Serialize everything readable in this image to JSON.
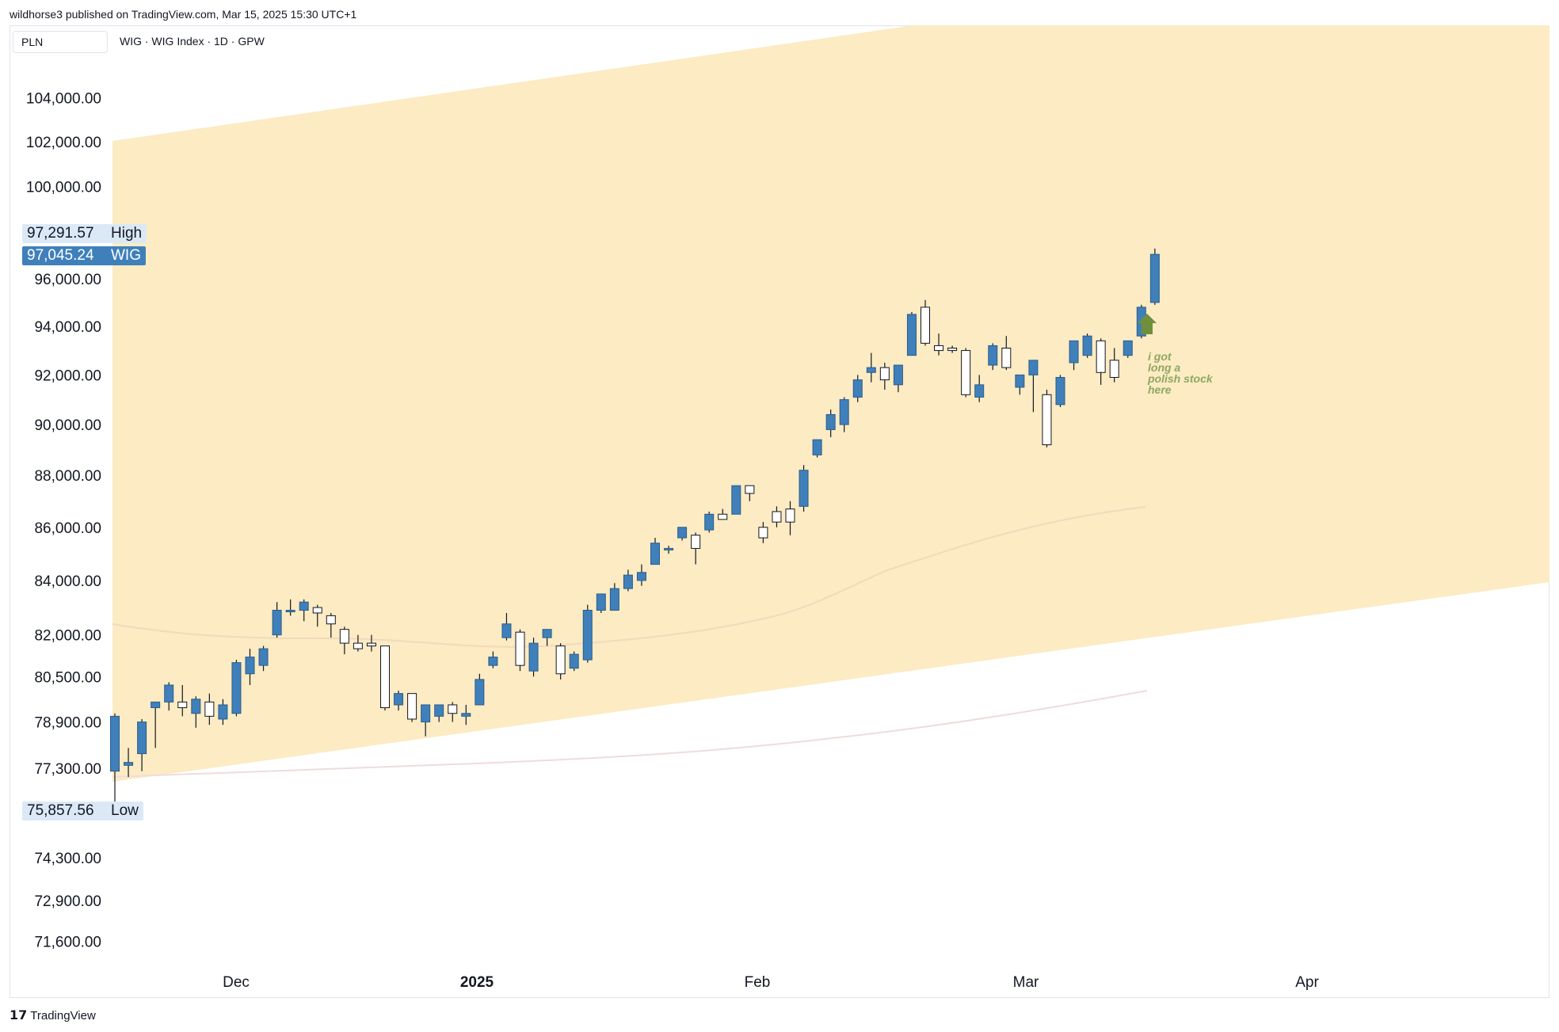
{
  "header": {
    "published_by": "wildhorse3 published on TradingView.com, Mar 15, 2025 15:30 UTC+1"
  },
  "toolbar": {
    "currency": "PLN",
    "symbol_line": "WIG · WIG Index · 1D · GPW"
  },
  "footer": {
    "logo_text": "TradingView",
    "logo_mark_icon": "tradingview-logo-icon"
  },
  "price_tags": {
    "high": {
      "value": "97,291.57",
      "label": "High"
    },
    "last": {
      "value": "97,045.24",
      "label": "WIG"
    },
    "low": {
      "value": "75,857.56",
      "label": "Low"
    }
  },
  "annotation": {
    "lines": [
      "i got",
      "long a",
      "polish stock",
      "here"
    ],
    "arrow_icon": "up-arrow-icon"
  },
  "colors": {
    "up_candle": "#3f80bb",
    "down_candle_fill": "#ffffff",
    "candle_border": "#2c5d8a",
    "channel_fill": "#fcebc3",
    "ma_short": "#f2d9bd",
    "ma_long": "#efdcdc",
    "arrow": "#6f8f3d",
    "annotation_text": "#8fa861"
  },
  "chart_data": {
    "type": "candlestick",
    "scale": "log",
    "interval": "1D",
    "y_tick_labels": [
      "104,000.00",
      "102,000.00",
      "100,000.00",
      "96,000.00",
      "94,000.00",
      "92,000.00",
      "90,000.00",
      "88,000.00",
      "86,000.00",
      "84,000.00",
      "82,000.00",
      "80,500.00",
      "78,900.00",
      "77,300.00",
      "74,300.00",
      "72,900.00",
      "71,600.00"
    ],
    "x_tick_labels": [
      "Dec",
      "2025",
      "Feb",
      "Mar",
      "Apr"
    ],
    "ylim": [
      70600,
      107000
    ],
    "grid": false,
    "candles": [
      {
        "o": 77200,
        "h": 79200,
        "l": 75858,
        "c": 79100
      },
      {
        "o": 77400,
        "h": 78000,
        "l": 77000,
        "c": 77500
      },
      {
        "o": 77800,
        "h": 79000,
        "l": 77200,
        "c": 78900
      },
      {
        "o": 79400,
        "h": 79600,
        "l": 78000,
        "c": 79600
      },
      {
        "o": 79600,
        "h": 80300,
        "l": 79300,
        "c": 80200
      },
      {
        "o": 79600,
        "h": 80200,
        "l": 79100,
        "c": 79400
      },
      {
        "o": 79200,
        "h": 79800,
        "l": 78700,
        "c": 79700
      },
      {
        "o": 79600,
        "h": 79900,
        "l": 78800,
        "c": 79100
      },
      {
        "o": 79000,
        "h": 79700,
        "l": 78800,
        "c": 79500
      },
      {
        "o": 79200,
        "h": 81100,
        "l": 79100,
        "c": 81000
      },
      {
        "o": 80600,
        "h": 81500,
        "l": 80200,
        "c": 81200
      },
      {
        "o": 80900,
        "h": 81600,
        "l": 80700,
        "c": 81500
      },
      {
        "o": 82000,
        "h": 83200,
        "l": 81900,
        "c": 82900
      },
      {
        "o": 82900,
        "h": 83300,
        "l": 82700,
        "c": 82900
      },
      {
        "o": 82900,
        "h": 83300,
        "l": 82500,
        "c": 83200
      },
      {
        "o": 83000,
        "h": 83100,
        "l": 82300,
        "c": 82800
      },
      {
        "o": 82700,
        "h": 82800,
        "l": 81900,
        "c": 82400
      },
      {
        "o": 82200,
        "h": 82300,
        "l": 81300,
        "c": 81700
      },
      {
        "o": 81700,
        "h": 82000,
        "l": 81400,
        "c": 81500
      },
      {
        "o": 81700,
        "h": 82000,
        "l": 81400,
        "c": 81600
      },
      {
        "o": 81600,
        "h": 81600,
        "l": 79300,
        "c": 79400
      },
      {
        "o": 79500,
        "h": 80000,
        "l": 79300,
        "c": 79900
      },
      {
        "o": 79900,
        "h": 79900,
        "l": 78900,
        "c": 79000
      },
      {
        "o": 78900,
        "h": 79500,
        "l": 78400,
        "c": 79500
      },
      {
        "o": 79100,
        "h": 79500,
        "l": 78900,
        "c": 79500
      },
      {
        "o": 79500,
        "h": 79600,
        "l": 78900,
        "c": 79200
      },
      {
        "o": 79100,
        "h": 79500,
        "l": 78800,
        "c": 79200
      },
      {
        "o": 79500,
        "h": 80600,
        "l": 79500,
        "c": 80400
      },
      {
        "o": 80900,
        "h": 81400,
        "l": 80800,
        "c": 81200
      },
      {
        "o": 81900,
        "h": 82800,
        "l": 81800,
        "c": 82400
      },
      {
        "o": 82100,
        "h": 82200,
        "l": 80700,
        "c": 80900
      },
      {
        "o": 80700,
        "h": 81900,
        "l": 80500,
        "c": 81700
      },
      {
        "o": 81900,
        "h": 82200,
        "l": 81600,
        "c": 82200
      },
      {
        "o": 81600,
        "h": 81700,
        "l": 80400,
        "c": 80600
      },
      {
        "o": 80800,
        "h": 81400,
        "l": 80700,
        "c": 81300
      },
      {
        "o": 81100,
        "h": 83100,
        "l": 81000,
        "c": 82900
      },
      {
        "o": 82900,
        "h": 83400,
        "l": 82800,
        "c": 83500
      },
      {
        "o": 82900,
        "h": 83900,
        "l": 82900,
        "c": 83700
      },
      {
        "o": 83700,
        "h": 84400,
        "l": 83600,
        "c": 84200
      },
      {
        "o": 84000,
        "h": 84600,
        "l": 83800,
        "c": 84300
      },
      {
        "o": 84600,
        "h": 85600,
        "l": 84600,
        "c": 85400
      },
      {
        "o": 85200,
        "h": 85300,
        "l": 85000,
        "c": 85200
      },
      {
        "o": 85600,
        "h": 86000,
        "l": 85500,
        "c": 86000
      },
      {
        "o": 85700,
        "h": 85800,
        "l": 84600,
        "c": 85200
      },
      {
        "o": 85900,
        "h": 86600,
        "l": 85800,
        "c": 86500
      },
      {
        "o": 86500,
        "h": 86700,
        "l": 86300,
        "c": 86300
      },
      {
        "o": 86500,
        "h": 87600,
        "l": 86500,
        "c": 87600
      },
      {
        "o": 87600,
        "h": 87600,
        "l": 87000,
        "c": 87300
      },
      {
        "o": 86000,
        "h": 86200,
        "l": 85400,
        "c": 85600
      },
      {
        "o": 86600,
        "h": 86800,
        "l": 86000,
        "c": 86200
      },
      {
        "o": 86700,
        "h": 87000,
        "l": 85700,
        "c": 86200
      },
      {
        "o": 86800,
        "h": 88400,
        "l": 86600,
        "c": 88200
      },
      {
        "o": 88800,
        "h": 89400,
        "l": 88700,
        "c": 89400
      },
      {
        "o": 89800,
        "h": 90600,
        "l": 89500,
        "c": 90400
      },
      {
        "o": 90000,
        "h": 91100,
        "l": 89700,
        "c": 91000
      },
      {
        "o": 91100,
        "h": 92000,
        "l": 90900,
        "c": 91800
      },
      {
        "o": 92100,
        "h": 92900,
        "l": 91700,
        "c": 92300
      },
      {
        "o": 92300,
        "h": 92500,
        "l": 91400,
        "c": 91800
      },
      {
        "o": 91600,
        "h": 92400,
        "l": 91300,
        "c": 92400
      },
      {
        "o": 92800,
        "h": 94600,
        "l": 92800,
        "c": 94500
      },
      {
        "o": 94800,
        "h": 95100,
        "l": 93200,
        "c": 93300
      },
      {
        "o": 93200,
        "h": 93700,
        "l": 92800,
        "c": 93000
      },
      {
        "o": 93100,
        "h": 93200,
        "l": 92900,
        "c": 93000
      },
      {
        "o": 93000,
        "h": 93100,
        "l": 91100,
        "c": 91200
      },
      {
        "o": 91100,
        "h": 92000,
        "l": 90900,
        "c": 91600
      },
      {
        "o": 92400,
        "h": 93300,
        "l": 92200,
        "c": 93200
      },
      {
        "o": 93100,
        "h": 93600,
        "l": 92200,
        "c": 92300
      },
      {
        "o": 91500,
        "h": 92000,
        "l": 91200,
        "c": 92000
      },
      {
        "o": 92000,
        "h": 92500,
        "l": 90500,
        "c": 92600
      },
      {
        "o": 91200,
        "h": 91400,
        "l": 89100,
        "c": 89200
      },
      {
        "o": 90800,
        "h": 92000,
        "l": 90700,
        "c": 91900
      },
      {
        "o": 92500,
        "h": 93400,
        "l": 92200,
        "c": 93400
      },
      {
        "o": 92800,
        "h": 93700,
        "l": 92700,
        "c": 93600
      },
      {
        "o": 93400,
        "h": 93500,
        "l": 91600,
        "c": 92100
      },
      {
        "o": 92600,
        "h": 93100,
        "l": 91700,
        "c": 91900
      },
      {
        "o": 92800,
        "h": 93400,
        "l": 92700,
        "c": 93400
      },
      {
        "o": 93600,
        "h": 94900,
        "l": 93500,
        "c": 94800
      },
      {
        "o": 95000,
        "h": 97292,
        "l": 94900,
        "c": 97045
      }
    ]
  }
}
